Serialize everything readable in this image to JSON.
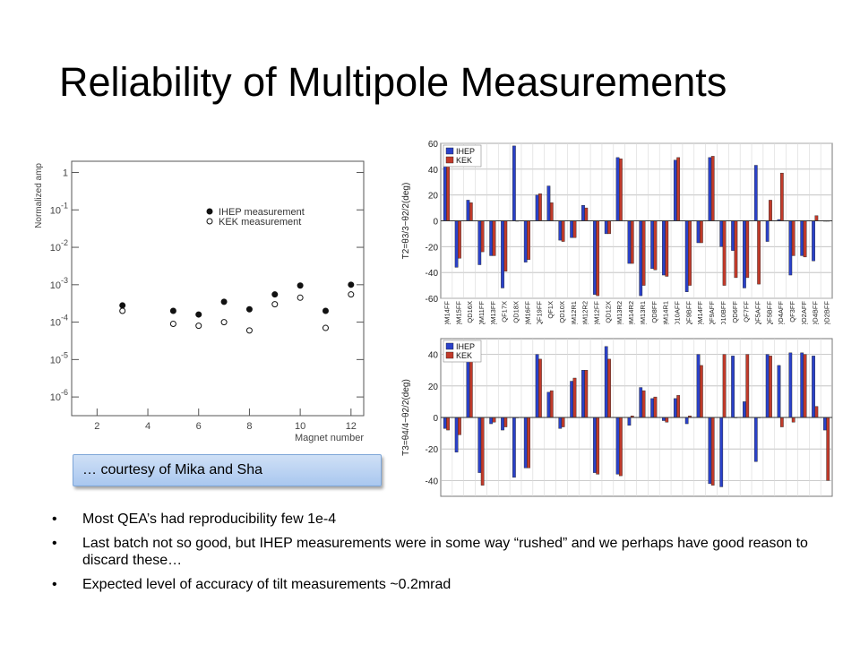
{
  "slide": {
    "title": "Reliability of Multipole Measurements",
    "credit": "… courtesy of Mika and Sha",
    "bullets": [
      "Most QEA’s had reproducibility few 1e-4",
      "Last batch not so good, but IHEP measurements were in some way “rushed” and we perhaps have good reason to discard these…",
      "Expected level of accuracy of tilt measurements ~0.2mrad"
    ]
  },
  "chart_data": [
    {
      "type": "scatter",
      "xlabel": "Magnet number",
      "ylabel": "Normalized amp",
      "xlim": [
        1,
        12.5
      ],
      "ylim": [
        -6.5,
        0.3
      ],
      "yscale": "log",
      "xticks": [
        "2",
        "4",
        "6",
        "8",
        "10",
        "12"
      ],
      "yticks": [
        {
          "base": "1",
          "exp": ""
        },
        {
          "base": "10",
          "exp": "-1"
        },
        {
          "base": "10",
          "exp": "-2"
        },
        {
          "base": "10",
          "exp": "-3"
        },
        {
          "base": "10",
          "exp": "-4"
        },
        {
          "base": "10",
          "exp": "-5"
        },
        {
          "base": "10",
          "exp": "-6"
        }
      ],
      "series": [
        {
          "name": "IHEP measurement",
          "marker": "filled",
          "color": "#111111",
          "x": [
            3,
            5,
            6,
            7,
            8,
            9,
            10,
            11,
            12
          ],
          "y": [
            0.00028,
            0.0002,
            0.00016,
            0.00035,
            0.00022,
            0.00055,
            0.00095,
            0.0002,
            0.001
          ]
        },
        {
          "name": "KEK measurement",
          "marker": "open",
          "color": "#111111",
          "x": [
            3,
            5,
            6,
            7,
            8,
            9,
            10,
            11,
            12
          ],
          "y": [
            0.0002,
            9e-05,
            8e-05,
            0.0001,
            6e-05,
            0.0003,
            0.00045,
            7e-05,
            0.00055
          ]
        }
      ]
    },
    {
      "type": "bar",
      "ylabel": "T2=θ3/3−θ2/2(deg)",
      "ylim": [
        -60,
        60
      ],
      "yticks": [
        -60,
        -40,
        -20,
        0,
        20,
        40,
        60
      ],
      "categories": [
        "QM14FF",
        "QM15FF",
        "QD16X",
        "QM11FF",
        "QM13FF",
        "QF17X",
        "QD18X",
        "QM16FF",
        "QF19FF",
        "QF1X",
        "QD10X",
        "QM12R1",
        "QM12R2",
        "QM12FF",
        "QD12X",
        "QM13R2",
        "QM14R2",
        "QM13R1",
        "QD8FF",
        "QM14R1",
        "QD10AFF",
        "QF9BFF",
        "QM14FF",
        "QF9AFF",
        "QD10BFF",
        "QD6FF",
        "QF7FF",
        "QF5AFF",
        "QF5BFF",
        "QD4AFF",
        "QF3FF",
        "QD2AFF",
        "QD4BFF",
        "QD2BFF"
      ],
      "series": [
        {
          "name": "IHEP",
          "color": "#2a41c9",
          "values": [
            42,
            -36,
            16,
            -34,
            -27,
            -52,
            58,
            -32,
            20,
            27,
            -15,
            -13,
            12,
            -57,
            -10,
            49,
            -33,
            -58,
            -37,
            -42,
            47,
            -55,
            -17,
            49,
            -20,
            -23,
            -52,
            43,
            -16,
            1,
            -42,
            -27,
            -31,
            0
          ]
        },
        {
          "name": "KEK",
          "color": "#c13a2a",
          "values": [
            48,
            -29,
            14,
            -24,
            -27,
            -39,
            0,
            -30,
            21,
            14,
            -16,
            -13,
            10,
            -58,
            -10,
            48,
            -33,
            -50,
            -38,
            -43,
            49,
            -50,
            -17,
            50,
            -50,
            -44,
            -44,
            -49,
            16,
            37,
            -27,
            -28,
            4,
            0
          ]
        }
      ]
    },
    {
      "type": "bar",
      "ylabel": "T3=θ4/4−θ2/2(deg)",
      "ylim": [
        -50,
        50
      ],
      "yticks": [
        -40,
        -20,
        0,
        20,
        40
      ],
      "categories": [
        "QM14FF",
        "QM15FF",
        "QD16X",
        "QM11FF",
        "QM13FF",
        "QF17X",
        "QD18X",
        "QM16FF",
        "QF19FF",
        "QF1X",
        "QD10X",
        "QM12R1",
        "QM12R2",
        "QM12FF",
        "QD12X",
        "QM13R2",
        "QM14R2",
        "QM13R1",
        "QD8FF",
        "QM14R1",
        "QD10AFF",
        "QF9BFF",
        "QM14FF",
        "QF9AFF",
        "QD10BFF",
        "QD6FF",
        "QF7FF",
        "QF5AFF",
        "QF5BFF",
        "QD4AFF",
        "QF3FF",
        "QD2AFF",
        "QD4BFF",
        "QD2BFF"
      ],
      "series": [
        {
          "name": "IHEP",
          "color": "#2a41c9",
          "values": [
            -7,
            -22,
            40,
            -35,
            -4,
            -8,
            -38,
            -32,
            40,
            16,
            -7,
            23,
            30,
            -35,
            45,
            -36,
            -5,
            19,
            12,
            -2,
            12,
            -4,
            40,
            -42,
            -44,
            39,
            10,
            -28,
            40,
            33,
            41,
            41,
            39,
            -8
          ]
        },
        {
          "name": "KEK",
          "color": "#c13a2a",
          "values": [
            -8,
            -11,
            36,
            -43,
            -3,
            -6,
            0,
            -32,
            37,
            17,
            -6,
            25,
            30,
            -36,
            37,
            -37,
            1,
            17,
            13,
            -3,
            14,
            1,
            33,
            -43,
            40,
            0,
            40,
            0,
            39,
            -6,
            -3,
            40,
            7,
            -40
          ]
        }
      ]
    }
  ]
}
